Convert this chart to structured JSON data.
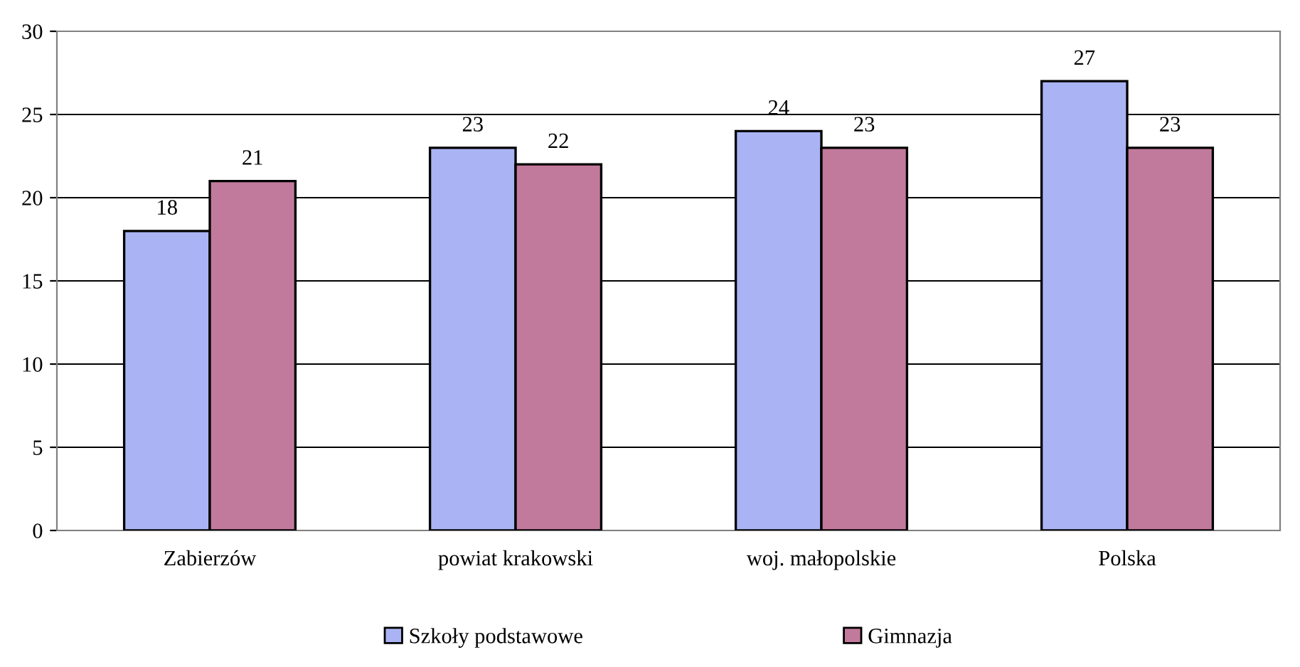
{
  "chart_data": {
    "type": "bar",
    "categories": [
      "Zabierzów",
      "powiat krakowski",
      "woj. małopolskie",
      "Polska"
    ],
    "series": [
      {
        "name": "Szkoły podstawowe",
        "color": "#aab4f4",
        "values": [
          18,
          23,
          24,
          27
        ]
      },
      {
        "name": "Gimnazja",
        "color": "#c27a9c",
        "values": [
          21,
          22,
          23,
          23
        ]
      }
    ],
    "ylim": [
      0,
      30
    ],
    "yticks": [
      0,
      5,
      10,
      15,
      20,
      25,
      30
    ],
    "grid": "y",
    "legend": "bottom",
    "data_labels": true
  }
}
